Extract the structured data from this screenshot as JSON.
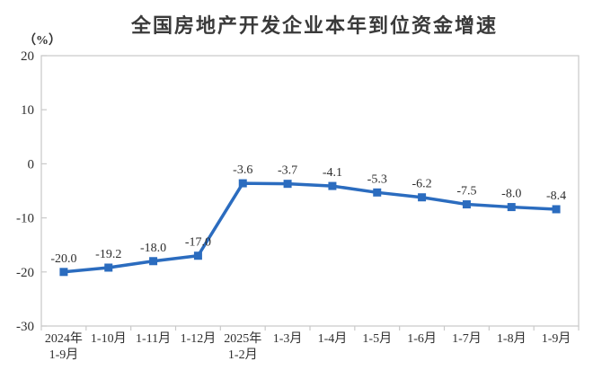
{
  "chart_data": {
    "type": "line",
    "title": "全国房地产开发企业本年到位资金增速",
    "ylabel": "（%）",
    "categories": [
      "2024年\n1-9月",
      "1-10月",
      "1-11月",
      "1-12月",
      "2025年\n1-2月",
      "1-3月",
      "1-4月",
      "1-5月",
      "1-6月",
      "1-7月",
      "1-8月",
      "1-9月"
    ],
    "values": [
      -20.0,
      -19.2,
      -18.0,
      -17.0,
      -3.6,
      -3.7,
      -4.1,
      -5.3,
      -6.2,
      -7.5,
      -8.0,
      -8.4
    ],
    "data_labels": [
      "-20.0",
      "-19.2",
      "-18.0",
      "-17.0",
      "-3.6",
      "-3.7",
      "-4.1",
      "-5.3",
      "-6.2",
      "-7.5",
      "-8.0",
      "-8.4"
    ],
    "ylim": [
      -30,
      20
    ],
    "yticks": [
      20,
      10,
      0,
      -10,
      -20,
      -30
    ],
    "grid": false,
    "legend_position": "none",
    "marker": "square",
    "colors": {
      "line": "#2B6CBF",
      "axis": "#C9C9C9",
      "tick_text": "#303030",
      "data_label_text": "#2e2e2e",
      "title_text": "#3a3a3a"
    }
  }
}
